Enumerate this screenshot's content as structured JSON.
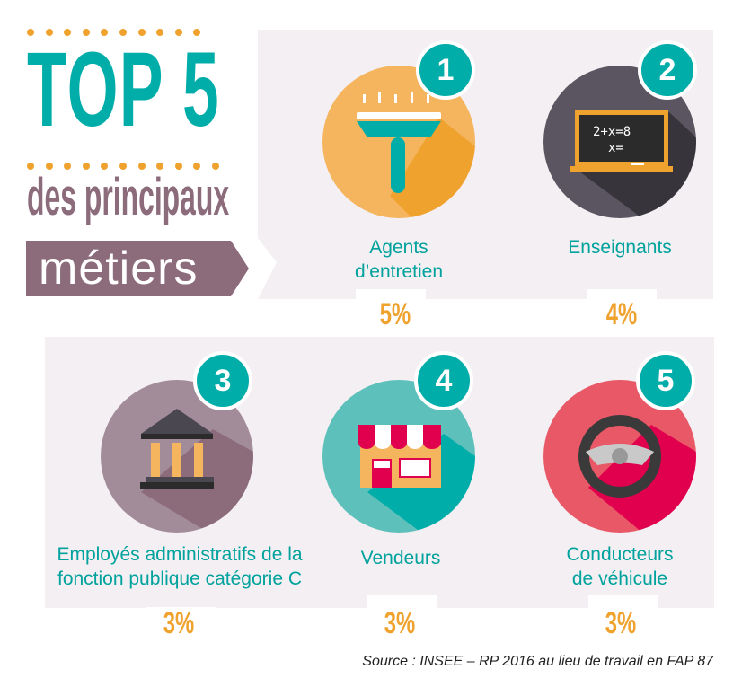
{
  "header": {
    "title": "TOP 5",
    "subtitle": "des principaux",
    "highlight": "métiers"
  },
  "items": [
    {
      "rank": "1",
      "label_lines": [
        "Agents",
        "d’entretien"
      ],
      "percent": "5%",
      "icon": "window-squeegee-icon",
      "color": "#f5b45e"
    },
    {
      "rank": "2",
      "label_lines": [
        "Enseignants"
      ],
      "percent": "4%",
      "icon": "chalkboard-icon",
      "color": "#5a5560",
      "board_text": [
        "2+x=8",
        "x="
      ]
    },
    {
      "rank": "3",
      "label_lines": [
        "Employés administratifs de la",
        "fonction publique catégorie C"
      ],
      "percent": "3%",
      "icon": "government-building-icon",
      "color": "#a38c9a"
    },
    {
      "rank": "4",
      "label_lines": [
        "Vendeurs"
      ],
      "percent": "3%",
      "icon": "shop-icon",
      "color": "#5ec0bb"
    },
    {
      "rank": "5",
      "label_lines": [
        "Conducteurs",
        "de véhicule"
      ],
      "percent": "3%",
      "icon": "steering-wheel-icon",
      "color": "#e85866"
    }
  ],
  "colors": {
    "accent": "#00ada9",
    "orange": "#f0a22e",
    "mauve": "#8c6c7b",
    "panel": "#f3eff2"
  },
  "source": "Source : INSEE – RP 2016 au lieu de travail en FAP 87"
}
